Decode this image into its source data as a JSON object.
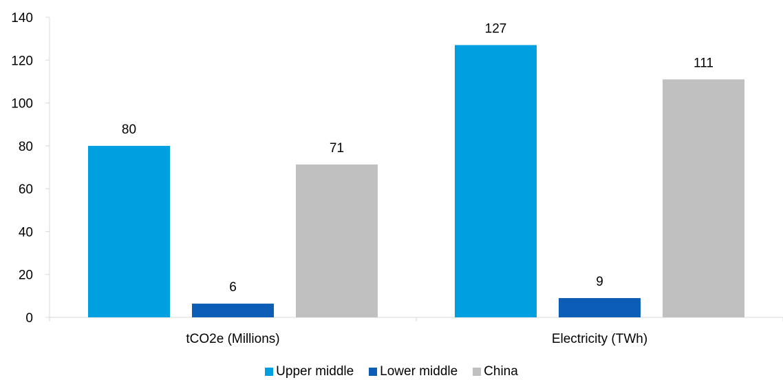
{
  "chart_data": {
    "type": "bar",
    "categories": [
      "tCO2e (Millions)",
      "Electricity (TWh)"
    ],
    "series": [
      {
        "name": "Upper middle",
        "values": [
          80,
          127
        ],
        "labels": [
          "80",
          "127"
        ],
        "color": "#00A0E0"
      },
      {
        "name": "Lower middle",
        "values": [
          6.4,
          9
        ],
        "labels": [
          "6",
          "9"
        ],
        "color": "#0B5DB5"
      },
      {
        "name": "China",
        "values": [
          71.3,
          111
        ],
        "labels": [
          "71",
          "111"
        ],
        "color": "#C0C0C0"
      }
    ],
    "title": "",
    "xlabel": "",
    "ylabel": "",
    "ylim": [
      0,
      140
    ],
    "yticks": [
      0,
      20,
      40,
      60,
      80,
      100,
      120,
      140
    ],
    "grid": false,
    "legend_position": "bottom",
    "axis_color": "#D9D9D9"
  }
}
